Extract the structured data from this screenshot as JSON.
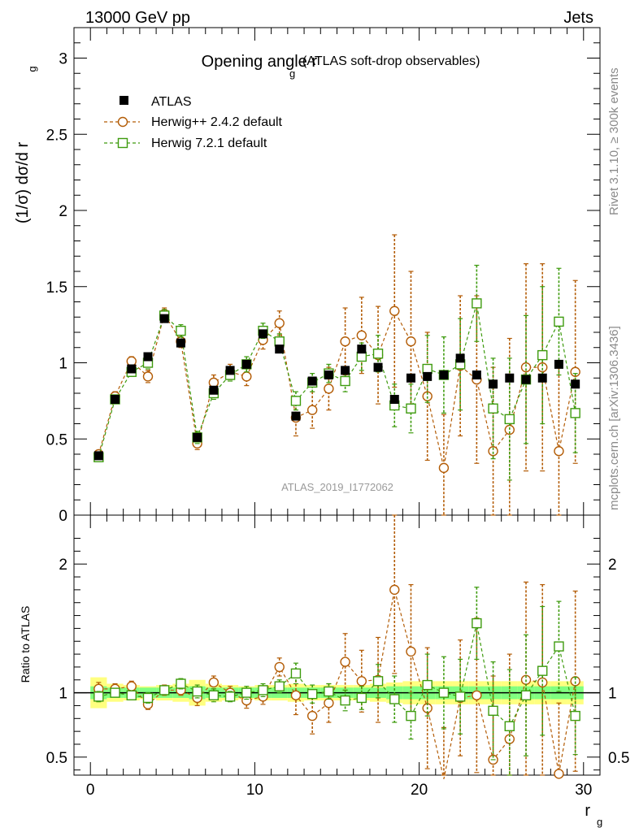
{
  "header": {
    "left": "13000 GeV pp",
    "right": "Jets"
  },
  "side_labels": {
    "top": "Rivet 3.1.10, ≥ 300k events",
    "bottom": "mcplots.cern.ch [arXiv:1306.3436]"
  },
  "chart_data": [
    {
      "type": "scatter",
      "panel": "main",
      "title": "Opening angle r",
      "title_sub": "g",
      "title_suffix": "(ATLAS soft-drop observables)",
      "ylabel": "(1/σ) dσ/d r",
      "ylabel_sub": "g",
      "xlim": [
        -1,
        31
      ],
      "ylim": [
        0,
        3.2
      ],
      "yticks": [
        0,
        0.5,
        1,
        1.5,
        2,
        2.5,
        3
      ],
      "yticklabels": [
        "0",
        "0.5",
        "1",
        "1.5",
        "2",
        "2.5",
        "3"
      ],
      "watermark": "ATLAS_2019_I1772062",
      "legend_placement": "top-left",
      "x": [
        0.5,
        1.5,
        2.5,
        3.5,
        4.5,
        5.5,
        6.5,
        7.5,
        8.5,
        9.5,
        10.5,
        11.5,
        12.5,
        13.5,
        14.5,
        15.5,
        16.5,
        17.5,
        18.5,
        19.5,
        20.5,
        21.5,
        22.5,
        23.5,
        24.5,
        25.5,
        26.5,
        27.5,
        28.5,
        29.5
      ],
      "series": [
        {
          "name": "ATLAS",
          "color": "#000000",
          "marker": "filled-square",
          "values": [
            0.39,
            0.76,
            0.96,
            1.04,
            1.29,
            1.13,
            0.51,
            0.82,
            0.95,
            0.99,
            1.19,
            1.09,
            0.65,
            0.88,
            0.92,
            0.95,
            1.09,
            0.97,
            0.76,
            0.9,
            0.91,
            0.92,
            1.03,
            0.92,
            0.86,
            0.9,
            0.89,
            0.9,
            0.99,
            0.86
          ]
        },
        {
          "name": "Herwig++ 2.4.2 default",
          "color": "#b35c06",
          "marker": "open-circle",
          "values": [
            0.4,
            0.78,
            1.01,
            0.91,
            1.32,
            1.14,
            0.47,
            0.87,
            0.94,
            0.91,
            1.15,
            1.26,
            0.64,
            0.69,
            0.83,
            1.14,
            1.18,
            1.05,
            1.34,
            1.14,
            0.78,
            0.31,
            0.98,
            0.89,
            0.42,
            0.56,
            0.97,
            0.97,
            0.42,
            0.94
          ],
          "errors": [
            0.02,
            0.03,
            0.03,
            0.04,
            0.04,
            0.04,
            0.04,
            0.05,
            0.05,
            0.06,
            0.06,
            0.08,
            0.12,
            0.12,
            0.14,
            0.22,
            0.25,
            0.32,
            0.5,
            0.46,
            0.42,
            0.35,
            0.46,
            0.55,
            0.55,
            0.6,
            0.68,
            0.68,
            0.55,
            0.6
          ]
        },
        {
          "name": "Herwig 7.2.1 default",
          "color": "#3e9b0e",
          "marker": "open-square",
          "values": [
            0.38,
            0.76,
            0.94,
            1.0,
            1.31,
            1.21,
            0.51,
            0.8,
            0.92,
            0.99,
            1.21,
            1.14,
            0.75,
            0.87,
            0.93,
            0.88,
            1.04,
            1.06,
            0.72,
            0.7,
            0.96,
            0.92,
            0.99,
            1.39,
            0.7,
            0.63,
            0.89,
            1.05,
            1.27,
            0.67
          ],
          "errors": [
            0.02,
            0.02,
            0.03,
            0.04,
            0.04,
            0.04,
            0.04,
            0.04,
            0.04,
            0.05,
            0.05,
            0.05,
            0.06,
            0.06,
            0.06,
            0.07,
            0.09,
            0.12,
            0.14,
            0.16,
            0.22,
            0.25,
            0.3,
            0.25,
            0.33,
            0.4,
            0.42,
            0.45,
            0.35,
            0.26
          ]
        }
      ]
    },
    {
      "type": "scatter",
      "panel": "ratio",
      "ylabel": "Ratio to ATLAS",
      "xlabel": "r",
      "xlabel_sub": "g",
      "xlim": [
        -1,
        31
      ],
      "ylim": [
        0.36,
        2.38
      ],
      "xticks": [
        0,
        10,
        20,
        30
      ],
      "xticklabels": [
        "0",
        "10",
        "20",
        "30"
      ],
      "yticks": [
        0.5,
        1,
        2
      ],
      "yticklabels": [
        "0.5",
        "1",
        "2"
      ],
      "band_inner": [
        0.05,
        0.04,
        0.04,
        0.04,
        0.04,
        0.04,
        0.05,
        0.04,
        0.04,
        0.04,
        0.04,
        0.04,
        0.04,
        0.04,
        0.04,
        0.04,
        0.04,
        0.04,
        0.05,
        0.05,
        0.05,
        0.05,
        0.05,
        0.05,
        0.05,
        0.05,
        0.05,
        0.05,
        0.05,
        0.05
      ],
      "band_outer": [
        0.12,
        0.07,
        0.06,
        0.05,
        0.06,
        0.07,
        0.1,
        0.07,
        0.06,
        0.05,
        0.06,
        0.06,
        0.07,
        0.06,
        0.06,
        0.06,
        0.06,
        0.07,
        0.08,
        0.09,
        0.09,
        0.09,
        0.09,
        0.09,
        0.09,
        0.09,
        0.09,
        0.09,
        0.09,
        0.09
      ],
      "series": [
        {
          "name": "Herwig++ 2.4.2 default",
          "color": "#b35c06",
          "values": [
            1.03,
            1.03,
            1.05,
            0.91,
            1.02,
            1.02,
            0.96,
            1.08,
            1.0,
            0.94,
            0.97,
            1.2,
            0.98,
            0.82,
            0.92,
            1.24,
            1.09,
            1.1,
            1.8,
            1.32,
            0.88,
            0.33,
            0.96,
            0.98,
            0.48,
            0.64,
            1.1,
            1.08,
            0.37,
            1.09
          ],
          "errors": [
            0.05,
            0.04,
            0.04,
            0.04,
            0.04,
            0.04,
            0.06,
            0.05,
            0.05,
            0.06,
            0.06,
            0.07,
            0.15,
            0.14,
            0.15,
            0.22,
            0.24,
            0.33,
            0.65,
            0.52,
            0.47,
            0.4,
            0.45,
            0.6,
            0.65,
            0.66,
            0.76,
            0.76,
            0.55,
            0.7
          ]
        },
        {
          "name": "Herwig 7.2.1 default",
          "color": "#3e9b0e",
          "values": [
            0.97,
            1.0,
            0.98,
            0.96,
            1.02,
            1.07,
            1.01,
            0.98,
            0.97,
            1.0,
            1.02,
            1.05,
            1.15,
            0.99,
            1.01,
            0.94,
            0.96,
            1.09,
            0.95,
            0.82,
            1.06,
            1.0,
            0.97,
            1.54,
            0.86,
            0.74,
            0.98,
            1.17,
            1.36,
            0.82
          ],
          "errors": [
            0.04,
            0.03,
            0.03,
            0.04,
            0.03,
            0.04,
            0.05,
            0.05,
            0.04,
            0.05,
            0.05,
            0.05,
            0.08,
            0.07,
            0.06,
            0.08,
            0.09,
            0.13,
            0.18,
            0.18,
            0.24,
            0.28,
            0.29,
            0.28,
            0.38,
            0.44,
            0.47,
            0.5,
            0.35,
            0.3
          ]
        }
      ]
    }
  ]
}
